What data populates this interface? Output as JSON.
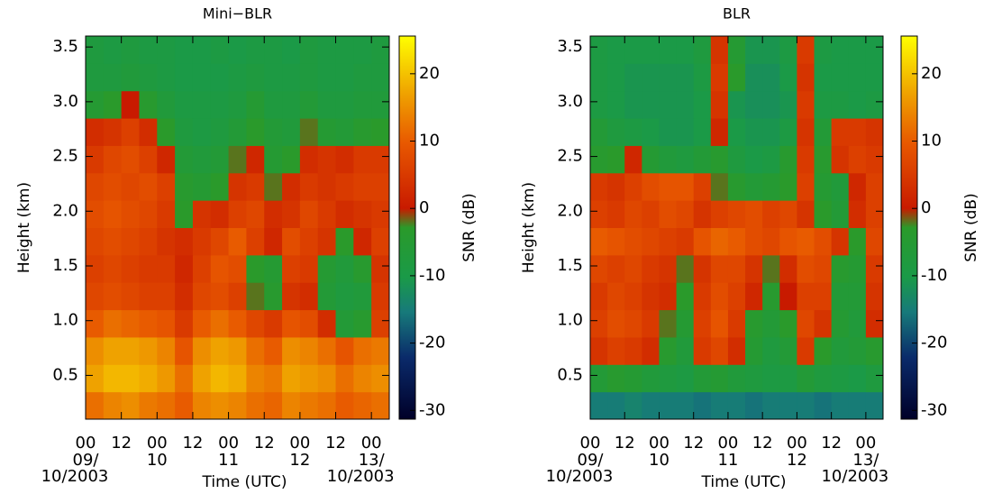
{
  "chart_data": [
    {
      "type": "heatmap",
      "title": "Mini−BLR",
      "xlabel": "Time (UTC)",
      "ylabel": "Height (km)",
      "xlim": [
        0,
        102
      ],
      "ylim": [
        0.1,
        3.6
      ],
      "x_edges": [
        0,
        6,
        12,
        18,
        24,
        30,
        36,
        42,
        48,
        54,
        60,
        66,
        72,
        78,
        84,
        90,
        96,
        102
      ],
      "y_edges": [
        0.1,
        0.35,
        0.6,
        0.85,
        1.1,
        1.35,
        1.6,
        1.85,
        2.1,
        2.35,
        2.6,
        2.85,
        3.1,
        3.35,
        3.6
      ],
      "xticks": [
        {
          "value": 0,
          "label": "00"
        },
        {
          "value": 12,
          "label": "12"
        },
        {
          "value": 24,
          "label": "00"
        },
        {
          "value": 36,
          "label": "12"
        },
        {
          "value": 48,
          "label": "00"
        },
        {
          "value": 60,
          "label": "12"
        },
        {
          "value": 72,
          "label": "00"
        },
        {
          "value": 84,
          "label": "12"
        },
        {
          "value": 96,
          "label": "00"
        }
      ],
      "date_labels": [
        {
          "value": 0,
          "lines": [
            "09/",
            "10/2003"
          ]
        },
        {
          "value": 24,
          "lines": [
            "10"
          ]
        },
        {
          "value": 48,
          "lines": [
            "11"
          ]
        },
        {
          "value": 72,
          "lines": [
            "12"
          ]
        },
        {
          "value": 96,
          "lines": [
            "13/",
            "10/2003"
          ]
        }
      ],
      "yticks": [
        0.5,
        {
          "value": 1.0,
          "label": "1.0"
        },
        1.5,
        {
          "value": 2.0,
          "label": "2.0"
        },
        2.5,
        {
          "value": 3.0,
          "label": "3.0"
        },
        3.5
      ],
      "z": [
        [
          12,
          14,
          15,
          13,
          12,
          10,
          14,
          15,
          14,
          12,
          11,
          14,
          13,
          12,
          10,
          11,
          12
        ],
        [
          17,
          19,
          19,
          18,
          16,
          12,
          17,
          19,
          18,
          14,
          13,
          17,
          16,
          15,
          12,
          14,
          15
        ],
        [
          15,
          17,
          17,
          16,
          14,
          9,
          15,
          17,
          16,
          12,
          10,
          15,
          14,
          12,
          9,
          12,
          13
        ],
        [
          10,
          12,
          11,
          10,
          9,
          5,
          10,
          12,
          10,
          7,
          5,
          9,
          8,
          3,
          -6,
          -4,
          6
        ],
        [
          7,
          8,
          7,
          6,
          6,
          3,
          7,
          8,
          6,
          -2,
          -4,
          4,
          3,
          -6,
          -8,
          -7,
          5
        ],
        [
          6,
          7,
          6,
          5,
          5,
          2,
          6,
          9,
          8,
          -3,
          -5,
          6,
          5,
          -5,
          -7,
          -4,
          4
        ],
        [
          7,
          8,
          7,
          6,
          4,
          3,
          5,
          7,
          10,
          6,
          2,
          8,
          6,
          4,
          -3,
          2,
          6
        ],
        [
          8,
          9,
          8,
          7,
          5,
          -3,
          4,
          3,
          6,
          7,
          3,
          4,
          7,
          5,
          3,
          4,
          5
        ],
        [
          7,
          8,
          7,
          8,
          6,
          -4,
          -5,
          -3,
          4,
          5,
          -2,
          3,
          5,
          4,
          5,
          6,
          6
        ],
        [
          5,
          7,
          8,
          6,
          2,
          -6,
          -7,
          -6,
          -2,
          2,
          -5,
          -3,
          3,
          4,
          3,
          5,
          5
        ],
        [
          3,
          4,
          6,
          3,
          -3,
          -8,
          -9,
          -8,
          -6,
          -3,
          -6,
          -7,
          -2,
          -5,
          -6,
          -4,
          -3
        ],
        [
          -5,
          -3,
          0,
          -4,
          -7,
          -9,
          -9,
          -9,
          -8,
          -5,
          -8,
          -8,
          -6,
          -8,
          -8,
          -7,
          -7
        ],
        [
          -8,
          -8,
          -7,
          -8,
          -9,
          -10,
          -10,
          -10,
          -9,
          -8,
          -9,
          -9,
          -8,
          -9,
          -9,
          -8,
          -8
        ],
        [
          -8,
          -9,
          -8,
          -9,
          -9,
          -10,
          -10,
          -9,
          -10,
          -9,
          -9,
          -10,
          -8,
          -9,
          -9,
          -9,
          -8
        ]
      ],
      "colorbar": {
        "label": "SNR (dB)",
        "lim": [
          -31.3,
          25.6
        ],
        "ticks": [
          -30,
          -20,
          -10,
          0,
          10,
          20
        ]
      }
    },
    {
      "type": "heatmap",
      "title": "BLR",
      "xlabel": "Time (UTC)",
      "ylabel": "Height (km)",
      "xlim": [
        0,
        102
      ],
      "ylim": [
        0.1,
        3.6
      ],
      "x_edges": [
        0,
        6,
        12,
        18,
        24,
        30,
        36,
        42,
        48,
        54,
        60,
        66,
        72,
        78,
        84,
        90,
        96,
        102
      ],
      "y_edges": [
        0.1,
        0.35,
        0.6,
        0.85,
        1.1,
        1.35,
        1.6,
        1.85,
        2.1,
        2.35,
        2.6,
        2.85,
        3.1,
        3.35,
        3.6
      ],
      "xticks": [
        {
          "value": 0,
          "label": "00"
        },
        {
          "value": 12,
          "label": "12"
        },
        {
          "value": 24,
          "label": "00"
        },
        {
          "value": 36,
          "label": "12"
        },
        {
          "value": 48,
          "label": "00"
        },
        {
          "value": 60,
          "label": "12"
        },
        {
          "value": 72,
          "label": "00"
        },
        {
          "value": 84,
          "label": "12"
        },
        {
          "value": 96,
          "label": "00"
        }
      ],
      "date_labels": [
        {
          "value": 0,
          "lines": [
            "09/",
            "10/2003"
          ]
        },
        {
          "value": 24,
          "lines": [
            "10"
          ]
        },
        {
          "value": 48,
          "lines": [
            "11"
          ]
        },
        {
          "value": 72,
          "lines": [
            "12"
          ]
        },
        {
          "value": 96,
          "lines": [
            "13/",
            "10/2003"
          ]
        }
      ],
      "yticks": [
        0.5,
        {
          "value": 1.0,
          "label": "1.0"
        },
        1.5,
        {
          "value": 2.0,
          "label": "2.0"
        },
        2.5,
        {
          "value": 3.0,
          "label": "3.0"
        },
        3.5
      ],
      "z": [
        [
          -15,
          -15,
          -14,
          -15,
          -15,
          -15,
          -16,
          -15,
          -15,
          -16,
          -15,
          -15,
          -15,
          -16,
          -15,
          -15,
          -15
        ],
        [
          -6,
          -4,
          -5,
          -7,
          -8,
          -9,
          -6,
          -5,
          -7,
          -8,
          -9,
          -9,
          -6,
          -8,
          -9,
          -10,
          -8
        ],
        [
          4,
          6,
          5,
          3,
          -4,
          -7,
          5,
          7,
          3,
          -5,
          -8,
          -6,
          5,
          -3,
          -7,
          -6,
          -4
        ],
        [
          6,
          8,
          7,
          5,
          -2,
          -5,
          6,
          9,
          5,
          -4,
          -6,
          -3,
          7,
          4,
          -5,
          -7,
          3
        ],
        [
          5,
          7,
          6,
          4,
          3,
          -3,
          5,
          8,
          6,
          2,
          -4,
          0,
          6,
          6,
          -6,
          -6,
          4
        ],
        [
          7,
          6,
          7,
          5,
          4,
          -2,
          4,
          7,
          7,
          4,
          -2,
          3,
          8,
          7,
          -4,
          -5,
          5
        ],
        [
          10,
          9,
          8,
          7,
          6,
          5,
          9,
          11,
          10,
          8,
          7,
          9,
          10,
          8,
          4,
          -3,
          7
        ],
        [
          6,
          5,
          7,
          6,
          8,
          7,
          4,
          6,
          7,
          8,
          6,
          7,
          4,
          -3,
          -6,
          3,
          6
        ],
        [
          5,
          4,
          6,
          8,
          9,
          9,
          6,
          -2,
          -4,
          -6,
          -5,
          -3,
          6,
          -5,
          -7,
          2,
          6
        ],
        [
          -4,
          -3,
          2,
          -5,
          -7,
          -8,
          -6,
          -4,
          -8,
          -10,
          -9,
          -4,
          5,
          -4,
          4,
          6,
          5
        ],
        [
          -6,
          -8,
          -9,
          -10,
          -11,
          -11,
          -10,
          2,
          -10,
          -11,
          -11,
          -9,
          4,
          -6,
          5,
          5,
          4
        ],
        [
          -9,
          -10,
          -11,
          -11,
          -11,
          -11,
          -10,
          4,
          -11,
          -12,
          -12,
          -11,
          5,
          -9,
          -9,
          -10,
          -9
        ],
        [
          -9,
          -10,
          -11,
          -11,
          -11,
          -11,
          -9,
          5,
          -3,
          -12,
          -12,
          -10,
          4,
          -10,
          -10,
          -10,
          -10
        ],
        [
          -9,
          -10,
          -10,
          -10,
          -10,
          -10,
          -8,
          4,
          -5,
          -11,
          -11,
          -9,
          5,
          -9,
          -10,
          -10,
          -10
        ]
      ],
      "colorbar": {
        "label": "SNR (dB)",
        "lim": [
          -31.3,
          25.6
        ],
        "ticks": [
          -30,
          -20,
          -10,
          0,
          10,
          20
        ]
      }
    }
  ]
}
